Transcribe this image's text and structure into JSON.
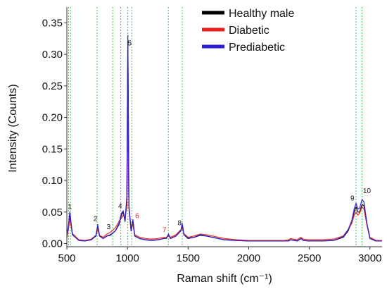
{
  "chart_data": {
    "type": "line",
    "title": "",
    "xlabel": "Raman shift (cm⁻¹)",
    "ylabel": "Intensity (Counts)",
    "xlim": [
      500,
      3100
    ],
    "ylim": [
      -0.005,
      0.375
    ],
    "x_ticks": [
      500,
      1000,
      1500,
      2000,
      2500,
      3000
    ],
    "y_ticks": [
      0.0,
      0.05,
      0.1,
      0.15,
      0.2,
      0.25,
      0.3,
      0.35
    ],
    "y_tick_labels": [
      "0.00",
      "0.05",
      "0.10",
      "0.15",
      "0.20",
      "0.25",
      "0.30",
      "0.35"
    ],
    "grid": false,
    "legend_position": "top-right",
    "series": [
      {
        "name": "Healthy male",
        "color": "#000000",
        "x": [
          500,
          515,
          525,
          545,
          600,
          650,
          700,
          740,
          755,
          770,
          800,
          830,
          860,
          900,
          930,
          950,
          965,
          980,
          995,
          1003,
          1012,
          1030,
          1045,
          1060,
          1100,
          1150,
          1200,
          1250,
          1300,
          1320,
          1338,
          1355,
          1400,
          1440,
          1452,
          1465,
          1500,
          1550,
          1600,
          1650,
          1700,
          1800,
          1900,
          2000,
          2100,
          2200,
          2300,
          2330,
          2345,
          2400,
          2430,
          2450,
          2500,
          2600,
          2700,
          2780,
          2820,
          2850,
          2870,
          2885,
          2900,
          2915,
          2935,
          2950,
          2975,
          3000,
          3050,
          3100
        ],
        "y": [
          0.01,
          0.03,
          0.048,
          0.015,
          0.005,
          0.004,
          0.006,
          0.012,
          0.028,
          0.012,
          0.008,
          0.012,
          0.014,
          0.02,
          0.03,
          0.045,
          0.05,
          0.035,
          0.07,
          0.32,
          0.06,
          0.02,
          0.035,
          0.012,
          0.008,
          0.006,
          0.005,
          0.006,
          0.008,
          0.008,
          0.014,
          0.008,
          0.012,
          0.02,
          0.03,
          0.014,
          0.008,
          0.01,
          0.013,
          0.012,
          0.01,
          0.006,
          0.005,
          0.004,
          0.004,
          0.004,
          0.004,
          0.004,
          0.006,
          0.004,
          0.008,
          0.005,
          0.004,
          0.004,
          0.005,
          0.01,
          0.02,
          0.035,
          0.05,
          0.058,
          0.05,
          0.05,
          0.062,
          0.06,
          0.03,
          0.008,
          0.004,
          0.004
        ]
      },
      {
        "name": "Diabetic",
        "color": "#e8211b",
        "x": [
          500,
          515,
          525,
          545,
          600,
          650,
          700,
          740,
          755,
          770,
          800,
          830,
          860,
          900,
          930,
          950,
          965,
          980,
          995,
          1003,
          1012,
          1030,
          1045,
          1060,
          1100,
          1150,
          1200,
          1250,
          1300,
          1320,
          1338,
          1355,
          1400,
          1440,
          1452,
          1465,
          1500,
          1550,
          1600,
          1650,
          1700,
          1800,
          1900,
          2000,
          2100,
          2200,
          2300,
          2330,
          2345,
          2400,
          2430,
          2450,
          2500,
          2600,
          2700,
          2780,
          2820,
          2850,
          2870,
          2885,
          2900,
          2915,
          2935,
          2950,
          2975,
          3000,
          3050,
          3100
        ],
        "y": [
          0.01,
          0.025,
          0.04,
          0.016,
          0.006,
          0.005,
          0.007,
          0.013,
          0.022,
          0.013,
          0.01,
          0.015,
          0.018,
          0.025,
          0.035,
          0.04,
          0.045,
          0.04,
          0.06,
          0.22,
          0.055,
          0.025,
          0.03,
          0.014,
          0.01,
          0.008,
          0.007,
          0.008,
          0.01,
          0.01,
          0.012,
          0.01,
          0.014,
          0.022,
          0.025,
          0.016,
          0.01,
          0.012,
          0.015,
          0.014,
          0.012,
          0.008,
          0.006,
          0.005,
          0.005,
          0.005,
          0.005,
          0.006,
          0.008,
          0.006,
          0.01,
          0.007,
          0.006,
          0.006,
          0.007,
          0.012,
          0.022,
          0.032,
          0.045,
          0.05,
          0.045,
          0.048,
          0.058,
          0.055,
          0.03,
          0.01,
          0.005,
          0.005
        ]
      },
      {
        "name": "Prediabetic",
        "color": "#2d1fd6",
        "x": [
          500,
          515,
          525,
          545,
          600,
          650,
          700,
          740,
          755,
          770,
          800,
          830,
          860,
          900,
          930,
          950,
          965,
          980,
          995,
          1003,
          1012,
          1030,
          1045,
          1060,
          1100,
          1150,
          1200,
          1250,
          1300,
          1320,
          1338,
          1355,
          1400,
          1440,
          1452,
          1465,
          1500,
          1550,
          1600,
          1650,
          1700,
          1800,
          1900,
          2000,
          2100,
          2200,
          2300,
          2330,
          2345,
          2400,
          2430,
          2450,
          2500,
          2600,
          2700,
          2780,
          2820,
          2850,
          2870,
          2885,
          2900,
          2915,
          2935,
          2950,
          2975,
          3000,
          3050,
          3100
        ],
        "y": [
          0.012,
          0.032,
          0.05,
          0.014,
          0.005,
          0.004,
          0.006,
          0.013,
          0.03,
          0.012,
          0.008,
          0.012,
          0.013,
          0.02,
          0.032,
          0.048,
          0.052,
          0.036,
          0.075,
          0.33,
          0.06,
          0.02,
          0.038,
          0.012,
          0.008,
          0.006,
          0.005,
          0.006,
          0.008,
          0.008,
          0.015,
          0.008,
          0.012,
          0.02,
          0.032,
          0.014,
          0.009,
          0.01,
          0.014,
          0.012,
          0.01,
          0.006,
          0.005,
          0.004,
          0.004,
          0.004,
          0.004,
          0.004,
          0.006,
          0.004,
          0.008,
          0.005,
          0.004,
          0.004,
          0.005,
          0.011,
          0.022,
          0.036,
          0.055,
          0.064,
          0.055,
          0.056,
          0.07,
          0.066,
          0.032,
          0.008,
          0.004,
          0.004
        ]
      }
    ],
    "reference_lines_x": [
      515,
      530,
      750,
      878,
      945,
      1003,
      1035,
      1337,
      1452,
      2885,
      2935
    ],
    "reference_line_color": "#3cc84a",
    "peak_labels": [
      {
        "text": "1",
        "x": 525,
        "y": 0.055,
        "color": "#111111"
      },
      {
        "text": "2",
        "x": 735,
        "y": 0.036,
        "color": "#111111"
      },
      {
        "text": "3",
        "x": 845,
        "y": 0.023,
        "color": "#111111"
      },
      {
        "text": "4",
        "x": 940,
        "y": 0.056,
        "color": "#111111"
      },
      {
        "text": "5",
        "x": 1018,
        "y": 0.314,
        "color": "#111111"
      },
      {
        "text": "6",
        "x": 1080,
        "y": 0.04,
        "color": "#e8211b"
      },
      {
        "text": "7",
        "x": 1305,
        "y": 0.018,
        "color": "#e8211b"
      },
      {
        "text": "8",
        "x": 1430,
        "y": 0.029,
        "color": "#111111"
      },
      {
        "text": "9",
        "x": 2855,
        "y": 0.068,
        "color": "#111111"
      },
      {
        "text": "10",
        "x": 2975,
        "y": 0.08,
        "color": "#111111"
      }
    ]
  }
}
